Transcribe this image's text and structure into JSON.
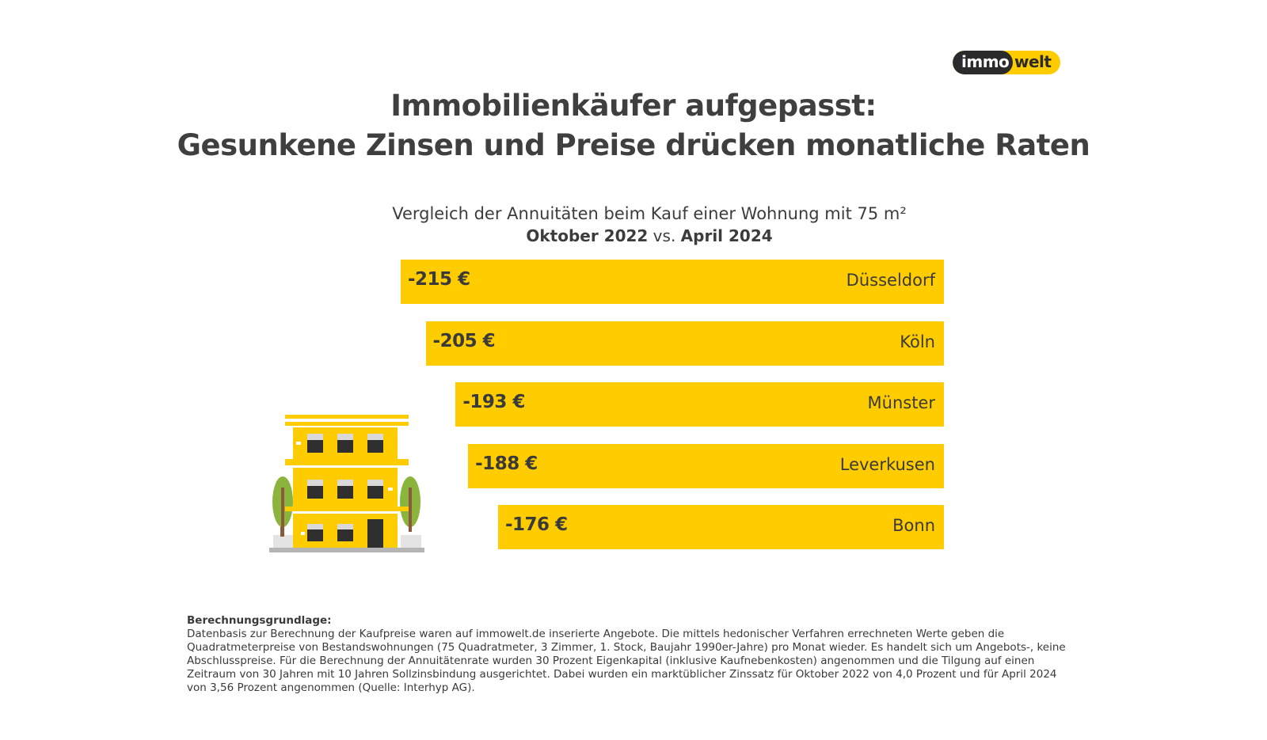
{
  "logo": {
    "part1": "immo",
    "part2": "welt"
  },
  "title": {
    "line1": "Immobilienkäufer aufgepasst:",
    "line2": "Gesunkene Zinsen und Preise drücken monatliche Raten"
  },
  "subtitle": {
    "line1": "Vergleich der Annuitäten beim Kauf einer Wohnung mit 75 m²",
    "from": "Oktober 2022",
    "vs": " vs. ",
    "to": "April 2024"
  },
  "colors": {
    "accent": "#ffcc00",
    "text": "#3c3c3c",
    "logo_dark": "#2b2b2b"
  },
  "chart_data": {
    "type": "bar",
    "orientation": "horizontal",
    "unit": "€",
    "categories": [
      "Düsseldorf",
      "Köln",
      "Münster",
      "Leverkusen",
      "Bonn"
    ],
    "values": [
      -215,
      -205,
      -193,
      -188,
      -176
    ],
    "value_labels": [
      "-215 €",
      "-205 €",
      "-193 €",
      "-188 €",
      "-176 €"
    ],
    "title": "Vergleich der Annuitäten beim Kauf einer Wohnung mit 75 m²",
    "subtitle": "Oktober 2022 vs. April 2024",
    "xlabel": "",
    "ylabel": ""
  },
  "footnote": {
    "heading": "Berechnungsgrundlage:",
    "text": "Datenbasis zur Berechnung der Kaufpreise waren auf immowelt.de inserierte Angebote. Die mittels hedonischer Verfahren errechneten Werte geben die Quadratmeterpreise von Bestandswohnungen (75 Quadratmeter, 3 Zimmer, 1. Stock, Baujahr 1990er-Jahre) pro Monat wieder. Es handelt sich um Angebots-, keine Abschlusspreise. Für die Berechnung der Annuitätenrate wurden 30 Prozent Eigenkapital (inklusive Kaufnebenkosten) angenommen und die Tilgung auf einen Zeitraum von 30 Jahren mit 10 Jahren Sollzinsbindung ausgerichtet. Dabei wurden ein marktüblicher Zinssatz für Oktober 2022 von 4,0 Prozent und für April 2024 von 3,56 Prozent angenommen (Quelle: Interhyp AG)."
  }
}
